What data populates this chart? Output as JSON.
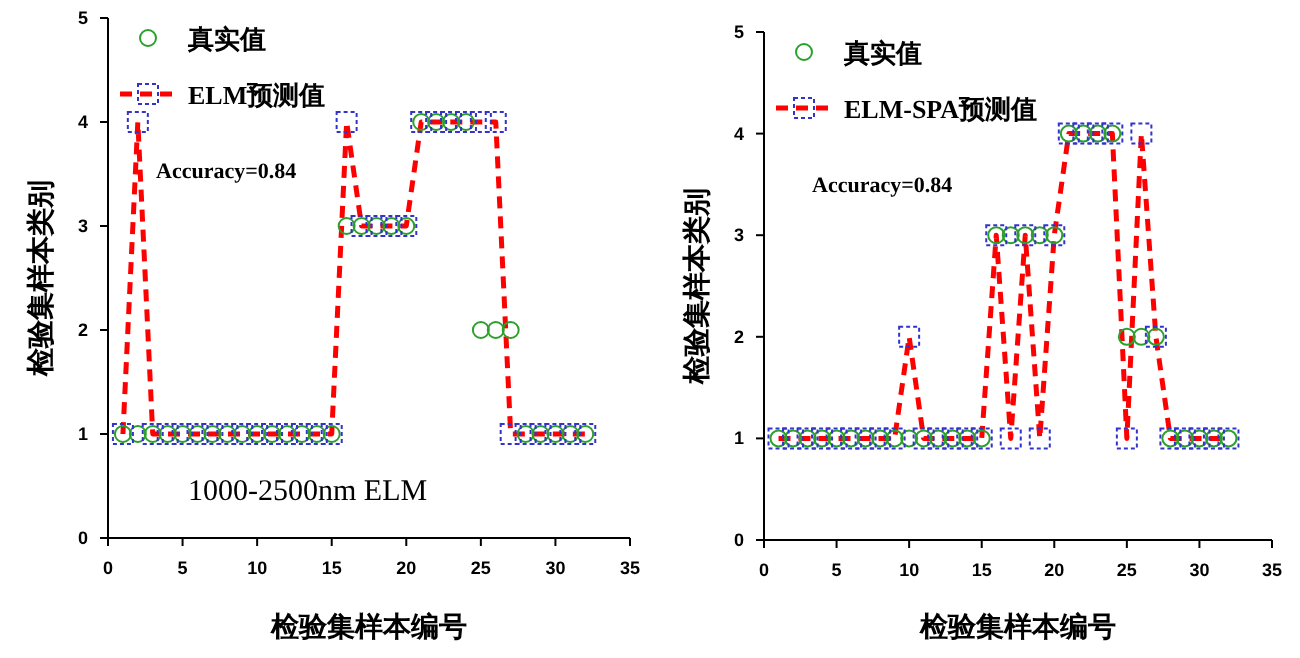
{
  "chart_data": [
    {
      "type": "scatter",
      "xlabel": "检验集样本编号",
      "ylabel": "检验集样本类别",
      "annotations": [
        "Accuracy=0.84",
        "1000-2500nm ELM"
      ],
      "x": [
        1,
        2,
        3,
        4,
        5,
        6,
        7,
        8,
        9,
        10,
        11,
        12,
        13,
        14,
        15,
        16,
        17,
        18,
        19,
        20,
        21,
        22,
        23,
        24,
        25,
        26,
        27,
        28,
        29,
        30,
        31,
        32
      ],
      "series": [
        {
          "name": "真实值",
          "type": "scatter",
          "color": "#2ca02c",
          "marker": "circle",
          "values": [
            1,
            1,
            1,
            1,
            1,
            1,
            1,
            1,
            1,
            1,
            1,
            1,
            1,
            1,
            1,
            3,
            3,
            3,
            3,
            3,
            4,
            4,
            4,
            4,
            2,
            2,
            2,
            1,
            1,
            1,
            1,
            1
          ]
        },
        {
          "name": "ELM预测值",
          "type": "line",
          "color": "#ff0000",
          "marker": "square",
          "line_style": "dashed",
          "values": [
            1,
            4,
            1,
            1,
            1,
            1,
            1,
            1,
            1,
            1,
            1,
            1,
            1,
            1,
            1,
            4,
            3,
            3,
            3,
            3,
            4,
            4,
            4,
            4,
            4,
            4,
            1,
            1,
            1,
            1,
            1,
            1
          ]
        }
      ],
      "xlim": [
        0,
        35
      ],
      "xticks": [
        0,
        5,
        10,
        15,
        20,
        25,
        30,
        35
      ],
      "ylim": [
        0,
        5
      ],
      "yticks": [
        0,
        1,
        2,
        3,
        4,
        5
      ],
      "grid": false,
      "legend": "top left"
    },
    {
      "type": "scatter",
      "xlabel": "检验集样本编号",
      "ylabel": "检验集样本类别",
      "annotations": [
        "Accuracy=0.84"
      ],
      "x": [
        1,
        2,
        3,
        4,
        5,
        6,
        7,
        8,
        9,
        10,
        11,
        12,
        13,
        14,
        15,
        16,
        17,
        18,
        19,
        20,
        21,
        22,
        23,
        24,
        25,
        26,
        27,
        28,
        29,
        30,
        31,
        32
      ],
      "series": [
        {
          "name": "真实值",
          "type": "scatter",
          "color": "#2ca02c",
          "marker": "circle",
          "values": [
            1,
            1,
            1,
            1,
            1,
            1,
            1,
            1,
            1,
            1,
            1,
            1,
            1,
            1,
            1,
            3,
            3,
            3,
            3,
            3,
            4,
            4,
            4,
            4,
            2,
            2,
            2,
            1,
            1,
            1,
            1,
            1
          ]
        },
        {
          "name": "ELM-SPA预测值",
          "type": "line",
          "color": "#ff0000",
          "marker": "square",
          "line_style": "dashed",
          "values": [
            1,
            1,
            1,
            1,
            1,
            1,
            1,
            1,
            1,
            2,
            1,
            1,
            1,
            1,
            1,
            3,
            1,
            3,
            1,
            3,
            4,
            4,
            4,
            4,
            1,
            4,
            2,
            1,
            1,
            1,
            1,
            1
          ]
        }
      ],
      "xlim": [
        0,
        35
      ],
      "xticks": [
        0,
        5,
        10,
        15,
        20,
        25,
        30,
        35
      ],
      "ylim": [
        0,
        5
      ],
      "yticks": [
        0,
        1,
        2,
        3,
        4,
        5
      ],
      "grid": false,
      "legend": "top left"
    }
  ]
}
